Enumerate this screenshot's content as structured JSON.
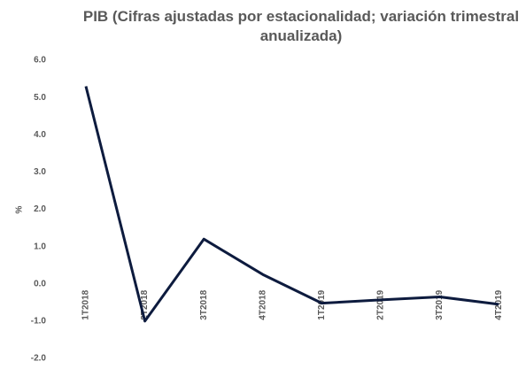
{
  "chart_data": {
    "type": "line",
    "title": "PIB (Cifras ajustadas por estacionalidad; variación trimestral anualizada)",
    "y_label": "%",
    "categories": [
      "1T2018",
      "2T2018",
      "3T2018",
      "4T2018",
      "1T2019",
      "2T2019",
      "3T2019",
      "4T2019"
    ],
    "series": [
      {
        "name": "PIB",
        "color": "#0d1b3e",
        "values": [
          5.3,
          -1.0,
          1.2,
          0.25,
          -0.52,
          -0.43,
          -0.35,
          -0.55
        ]
      }
    ],
    "ylim": [
      -2,
      6
    ],
    "yticks": [
      {
        "value": -2,
        "label": "-2.0"
      },
      {
        "value": -1,
        "label": "-1.0"
      },
      {
        "value": 0,
        "label": "0.0"
      },
      {
        "value": 1,
        "label": "1.0"
      },
      {
        "value": 2,
        "label": "2.0"
      },
      {
        "value": 3,
        "label": "3.0"
      },
      {
        "value": 4,
        "label": "4.0"
      },
      {
        "value": 5,
        "label": "5.0"
      },
      {
        "value": 6,
        "label": "6.0"
      }
    ],
    "grid": false
  }
}
